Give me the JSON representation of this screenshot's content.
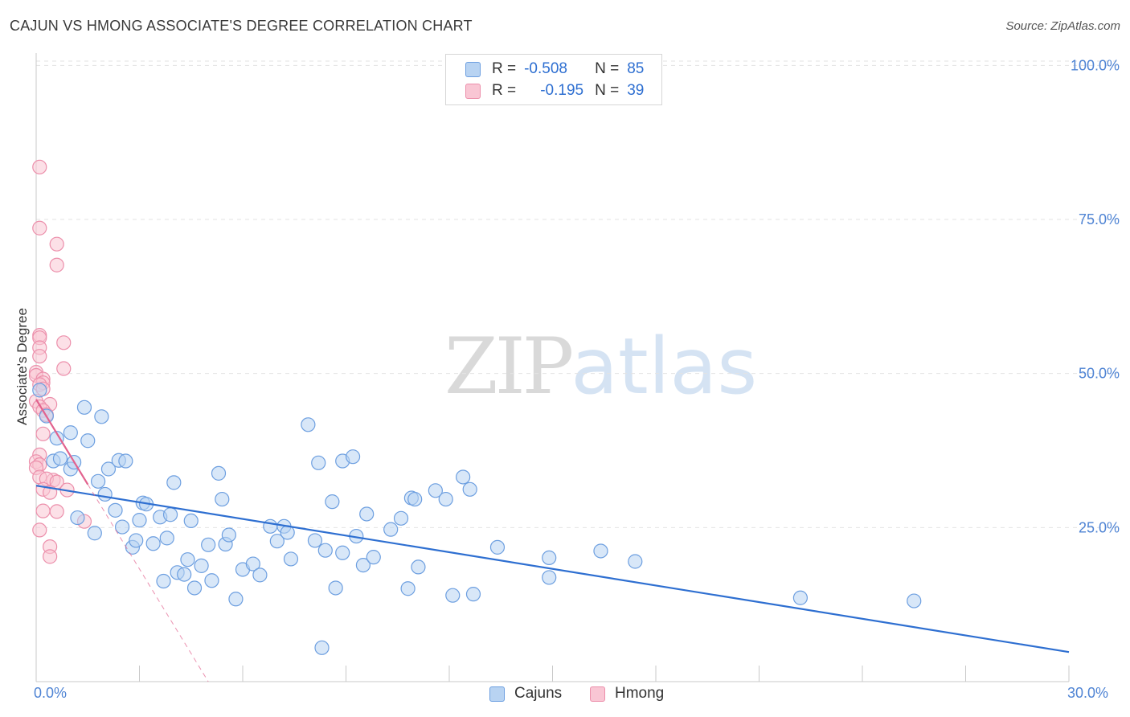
{
  "title": "CAJUN VS HMONG ASSOCIATE'S DEGREE CORRELATION CHART",
  "source": "Source: ZipAtlas.com",
  "watermark": {
    "zip": "ZIP",
    "atlas": "atlas"
  },
  "legend": {
    "rows": [
      {
        "r_label": "R =",
        "r_value": "-0.508",
        "n_label": "N =",
        "n_value": "85"
      },
      {
        "r_label": "R =",
        "r_value": "-0.195",
        "n_label": "N =",
        "n_value": "39"
      }
    ]
  },
  "colors": {
    "cajun_fill": "#b8d3f2",
    "cajun_stroke": "#6d9fe0",
    "cajun_line": "#2e6fd1",
    "hmong_fill": "#f9c6d4",
    "hmong_stroke": "#ec8fab",
    "hmong_line": "#e2628e",
    "grid": "#e3e3e3",
    "tick_text": "#4f84d4"
  },
  "chart_data": {
    "type": "scatter",
    "title": "CAJUN VS HMONG ASSOCIATE'S DEGREE CORRELATION CHART",
    "xlabel": "",
    "ylabel": "Associate's Degree",
    "xlim": [
      0,
      30
    ],
    "ylim": [
      0,
      102
    ],
    "x_tick_labels": [
      "0.0%",
      "30.0%"
    ],
    "y_ticks": [
      25,
      50,
      75,
      100
    ],
    "y_tick_labels": [
      "25.0%",
      "50.0%",
      "75.0%",
      "100.0%"
    ],
    "legend_placement": "top-center",
    "series": [
      {
        "name": "Cajuns",
        "r": -0.508,
        "n": 85,
        "trend": {
          "x": [
            0,
            30
          ],
          "y": [
            31.8,
            4.8
          ]
        },
        "points": [
          [
            0.1,
            47.3
          ],
          [
            0.3,
            43.1
          ],
          [
            0.5,
            35.8
          ],
          [
            0.6,
            39.5
          ],
          [
            0.7,
            36.2
          ],
          [
            1.0,
            40.4
          ],
          [
            1.0,
            34.5
          ],
          [
            1.1,
            35.6
          ],
          [
            1.2,
            26.6
          ],
          [
            1.4,
            44.5
          ],
          [
            1.5,
            39.1
          ],
          [
            1.7,
            24.1
          ],
          [
            1.8,
            32.5
          ],
          [
            1.9,
            43.0
          ],
          [
            2.0,
            30.4
          ],
          [
            2.1,
            34.5
          ],
          [
            2.3,
            27.8
          ],
          [
            2.4,
            35.9
          ],
          [
            2.5,
            25.1
          ],
          [
            2.6,
            35.8
          ],
          [
            2.8,
            21.8
          ],
          [
            2.9,
            22.9
          ],
          [
            3.0,
            26.2
          ],
          [
            3.1,
            29.0
          ],
          [
            3.2,
            28.8
          ],
          [
            3.4,
            22.4
          ],
          [
            3.6,
            26.7
          ],
          [
            3.7,
            16.3
          ],
          [
            3.8,
            23.3
          ],
          [
            3.9,
            27.1
          ],
          [
            4.0,
            32.3
          ],
          [
            4.1,
            17.7
          ],
          [
            4.3,
            17.4
          ],
          [
            4.4,
            19.8
          ],
          [
            4.5,
            26.1
          ],
          [
            4.6,
            15.2
          ],
          [
            4.8,
            18.8
          ],
          [
            5.0,
            22.2
          ],
          [
            5.1,
            16.4
          ],
          [
            5.3,
            33.8
          ],
          [
            5.4,
            29.6
          ],
          [
            5.5,
            22.3
          ],
          [
            5.6,
            23.8
          ],
          [
            5.8,
            13.4
          ],
          [
            6.0,
            18.2
          ],
          [
            6.3,
            19.1
          ],
          [
            6.5,
            17.3
          ],
          [
            6.8,
            25.2
          ],
          [
            7.0,
            22.8
          ],
          [
            7.2,
            25.2
          ],
          [
            7.3,
            24.2
          ],
          [
            7.4,
            19.9
          ],
          [
            7.9,
            41.7
          ],
          [
            8.1,
            22.9
          ],
          [
            8.2,
            35.5
          ],
          [
            8.3,
            5.5
          ],
          [
            8.4,
            21.3
          ],
          [
            8.6,
            29.2
          ],
          [
            8.7,
            15.2
          ],
          [
            8.9,
            35.8
          ],
          [
            8.9,
            20.9
          ],
          [
            9.2,
            36.5
          ],
          [
            9.3,
            23.6
          ],
          [
            9.5,
            18.9
          ],
          [
            9.6,
            27.2
          ],
          [
            9.8,
            20.2
          ],
          [
            10.3,
            24.7
          ],
          [
            10.6,
            26.5
          ],
          [
            10.8,
            15.1
          ],
          [
            10.9,
            29.8
          ],
          [
            11.0,
            29.6
          ],
          [
            11.1,
            18.6
          ],
          [
            11.6,
            31.0
          ],
          [
            11.9,
            29.6
          ],
          [
            12.1,
            14.0
          ],
          [
            12.4,
            33.2
          ],
          [
            12.6,
            31.2
          ],
          [
            12.7,
            14.2
          ],
          [
            13.4,
            21.8
          ],
          [
            14.9,
            20.1
          ],
          [
            14.9,
            16.9
          ],
          [
            16.4,
            21.2
          ],
          [
            17.4,
            19.5
          ],
          [
            22.2,
            13.6
          ],
          [
            25.5,
            13.1
          ]
        ]
      },
      {
        "name": "Hmong",
        "r": -0.195,
        "n": 39,
        "trend": {
          "x": [
            0,
            1.5
          ],
          "y": [
            45.8,
            32.0
          ]
        },
        "trend_extended": {
          "x": [
            1.5,
            5.0
          ],
          "y": [
            32.0,
            0.0
          ]
        },
        "points": [
          [
            0.1,
            83.5
          ],
          [
            0.1,
            73.6
          ],
          [
            0.6,
            71.0
          ],
          [
            0.6,
            67.6
          ],
          [
            0.1,
            56.2
          ],
          [
            0.1,
            55.8
          ],
          [
            0.8,
            55.0
          ],
          [
            0.1,
            54.2
          ],
          [
            0.1,
            52.8
          ],
          [
            0.8,
            50.8
          ],
          [
            0.0,
            50.2
          ],
          [
            0.0,
            49.7
          ],
          [
            0.2,
            49.1
          ],
          [
            0.2,
            48.5
          ],
          [
            0.1,
            48.2
          ],
          [
            0.2,
            47.5
          ],
          [
            0.0,
            45.5
          ],
          [
            0.4,
            45.0
          ],
          [
            0.1,
            44.6
          ],
          [
            0.2,
            44.0
          ],
          [
            0.3,
            43.3
          ],
          [
            0.2,
            40.2
          ],
          [
            0.1,
            36.8
          ],
          [
            0.0,
            35.7
          ],
          [
            0.1,
            35.2
          ],
          [
            0.0,
            34.7
          ],
          [
            0.1,
            33.2
          ],
          [
            0.5,
            32.7
          ],
          [
            0.3,
            32.9
          ],
          [
            0.6,
            32.4
          ],
          [
            0.2,
            31.2
          ],
          [
            0.9,
            31.1
          ],
          [
            0.4,
            30.7
          ],
          [
            0.2,
            27.7
          ],
          [
            0.6,
            27.6
          ],
          [
            1.4,
            26.0
          ],
          [
            0.1,
            24.6
          ],
          [
            0.4,
            21.9
          ],
          [
            0.4,
            20.3
          ]
        ]
      }
    ]
  }
}
